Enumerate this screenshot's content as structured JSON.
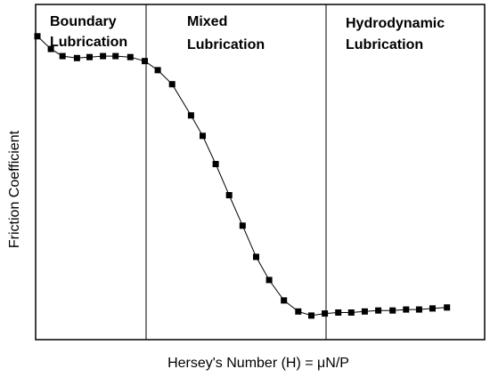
{
  "chart_data": {
    "type": "line",
    "xlabel": "Hersey's Number (H) = μN/P",
    "ylabel": "Friction Coefficient",
    "x_ticks": "none",
    "y_ticks": "none",
    "grid": false,
    "legend": "none",
    "xlim": [
      0,
      100
    ],
    "ylim": [
      0,
      100
    ],
    "regions": [
      {
        "label_lines": [
          "Boundary",
          "Lubrication"
        ],
        "x_start": 0,
        "x_end": 24
      },
      {
        "label_lines": [
          "Mixed",
          "Lubrication"
        ],
        "x_start": 24,
        "x_end": 64
      },
      {
        "label_lines": [
          "Hydrodynamic",
          "Lubrication"
        ],
        "x_start": 64,
        "x_end": 100
      }
    ],
    "series": [
      {
        "color": "#000000",
        "marker": "square",
        "line_style": "solid-thin",
        "points": [
          {
            "x": 0.4,
            "y": 90.5
          },
          {
            "x": 3.4,
            "y": 86.7
          },
          {
            "x": 6.0,
            "y": 84.6
          },
          {
            "x": 9.2,
            "y": 84.0
          },
          {
            "x": 12.0,
            "y": 84.3
          },
          {
            "x": 15.0,
            "y": 84.6
          },
          {
            "x": 17.8,
            "y": 84.6
          },
          {
            "x": 21.1,
            "y": 84.3
          },
          {
            "x": 24.3,
            "y": 83.1
          },
          {
            "x": 27.2,
            "y": 80.4
          },
          {
            "x": 30.4,
            "y": 76.2
          },
          {
            "x": 34.6,
            "y": 66.9
          },
          {
            "x": 37.2,
            "y": 60.8
          },
          {
            "x": 40.1,
            "y": 52.4
          },
          {
            "x": 43.1,
            "y": 43.1
          },
          {
            "x": 46.1,
            "y": 34.0
          },
          {
            "x": 49.1,
            "y": 24.7
          },
          {
            "x": 52.0,
            "y": 17.8
          },
          {
            "x": 55.3,
            "y": 11.7
          },
          {
            "x": 58.5,
            "y": 8.4
          },
          {
            "x": 61.4,
            "y": 7.2
          },
          {
            "x": 64.4,
            "y": 7.8
          },
          {
            "x": 67.4,
            "y": 8.1
          },
          {
            "x": 70.3,
            "y": 8.1
          },
          {
            "x": 73.3,
            "y": 8.4
          },
          {
            "x": 76.3,
            "y": 8.7
          },
          {
            "x": 79.5,
            "y": 8.7
          },
          {
            "x": 82.5,
            "y": 9.0
          },
          {
            "x": 85.4,
            "y": 9.0
          },
          {
            "x": 88.4,
            "y": 9.3
          },
          {
            "x": 91.6,
            "y": 9.6
          }
        ]
      }
    ]
  }
}
